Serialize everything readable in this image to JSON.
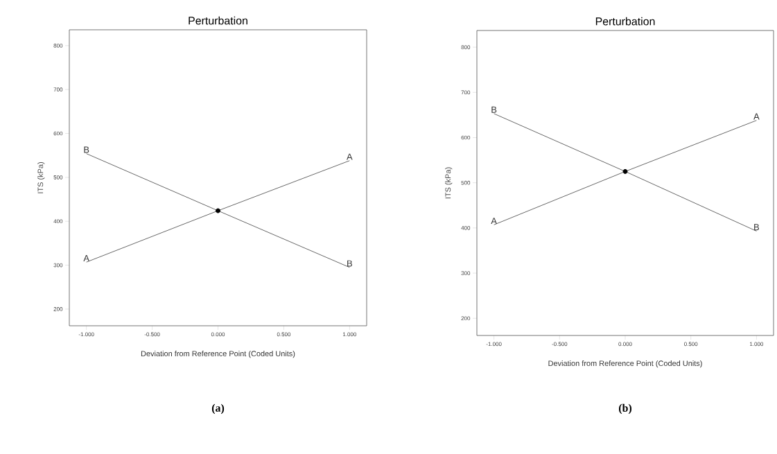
{
  "chart_data": [
    {
      "type": "line",
      "title": "Perturbation",
      "xlabel": "Deviation from Reference Point (Coded Units)",
      "ylabel": "ITS (kPa)",
      "xlim": [
        -1.13,
        1.13
      ],
      "ylim": [
        162,
        836
      ],
      "xticks": [
        {
          "value": -1,
          "label": "-1.000"
        },
        {
          "value": -0.5,
          "label": "-0.500"
        },
        {
          "value": 0,
          "label": "0.000"
        },
        {
          "value": 0.5,
          "label": "0.500"
        },
        {
          "value": 1,
          "label": "1.000"
        }
      ],
      "yticks": [
        200,
        300,
        400,
        500,
        600,
        700,
        800
      ],
      "grid": false,
      "legend": false,
      "marker": "none",
      "line_style": "solid",
      "annotations": [
        "(a)"
      ],
      "series": [
        {
          "name": "A",
          "x": [
            -1,
            0,
            1
          ],
          "values": [
            307,
            424,
            538
          ],
          "color": "#555555"
        },
        {
          "name": "B",
          "x": [
            -1,
            0,
            1
          ],
          "values": [
            554,
            424,
            295
          ],
          "color": "#555555"
        },
        {
          "type": "scatter",
          "x": [
            0
          ],
          "values": [
            424
          ],
          "color": "#000000"
        }
      ]
    },
    {
      "type": "line",
      "title": "Perturbation",
      "xlabel": "Deviation from Reference Point (Coded Units)",
      "ylabel": "ITS (kPa)",
      "xlim": [
        -1.13,
        1.13
      ],
      "ylim": [
        162,
        837
      ],
      "xticks": [
        {
          "value": -1,
          "label": "-1.000"
        },
        {
          "value": -0.5,
          "label": "-0.500"
        },
        {
          "value": 0,
          "label": "0.000"
        },
        {
          "value": 0.5,
          "label": "0.500"
        },
        {
          "value": 1,
          "label": "1.000"
        }
      ],
      "yticks": [
        200,
        300,
        400,
        500,
        600,
        700,
        800
      ],
      "grid": false,
      "legend": false,
      "marker": "none",
      "line_style": "solid",
      "annotations": [
        "(b)"
      ],
      "series": [
        {
          "name": "A",
          "x": [
            -1,
            0,
            1
          ],
          "values": [
            407,
            525,
            638
          ],
          "color": "#555555"
        },
        {
          "name": "B",
          "x": [
            -1,
            0,
            1
          ],
          "values": [
            653,
            525,
            393
          ],
          "color": "#555555"
        },
        {
          "type": "scatter",
          "x": [
            0
          ],
          "values": [
            525
          ],
          "color": "#000000"
        }
      ]
    }
  ]
}
